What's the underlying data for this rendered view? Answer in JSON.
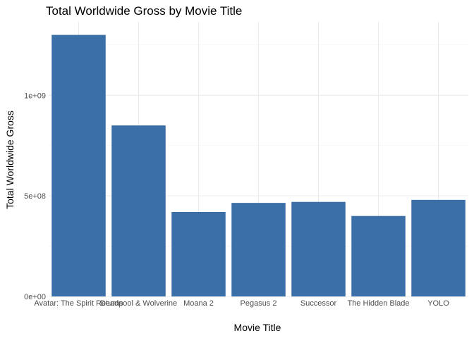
{
  "chart_data": {
    "type": "bar",
    "title": "Total Worldwide Gross by Movie Title",
    "xlabel": "Movie Title",
    "ylabel": "Total Worldwide Gross",
    "categories": [
      "Avatar: The Spirit Returns",
      "Deadpool & Wolverine",
      "Moana 2",
      "Pegasus 2",
      "Successor",
      "The Hidden Blade",
      "YOLO"
    ],
    "values": [
      1300000000,
      850000000,
      420000000,
      465000000,
      470000000,
      400000000,
      480000000
    ],
    "ylim": [
      0,
      1300000000
    ],
    "yticks": [
      0,
      500000000,
      1000000000
    ],
    "ytick_labels": [
      "0e+00",
      "5e+08",
      "1e+09"
    ],
    "bar_color": "#3a6fa8",
    "grid": true,
    "legend": "none"
  }
}
